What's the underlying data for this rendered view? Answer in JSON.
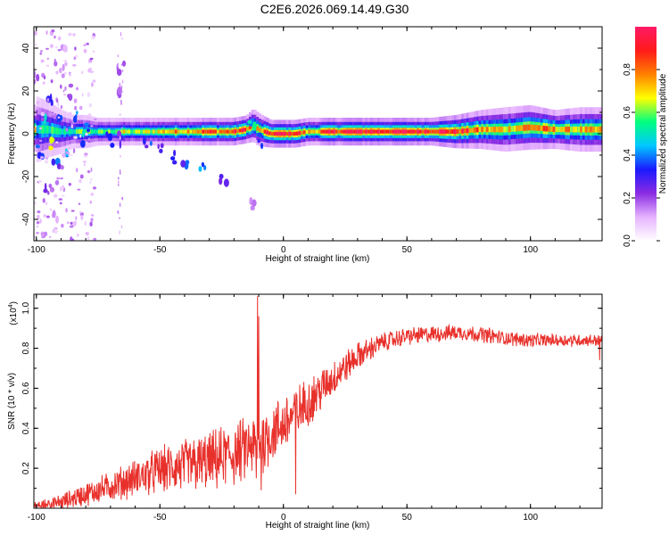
{
  "title": "C2E6.2026.069.14.49.G30",
  "chart_data": [
    {
      "type": "heatmap",
      "xlabel": "Height of straight line (km)",
      "ylabel": "Frequency (Hz)",
      "xlim": [
        -101,
        129
      ],
      "ylim": [
        -50,
        50
      ],
      "xticks": [
        -100,
        -50,
        0,
        50,
        100
      ],
      "yticks": [
        -40,
        -20,
        0,
        20,
        40
      ],
      "colorbar": {
        "label": "Normalized spectral amplitude",
        "range": [
          0,
          1
        ],
        "ticks": [
          0.0,
          0.2,
          0.4,
          0.6,
          0.8
        ],
        "colors": [
          "#ffffff",
          "#e6b3ff",
          "#8a2be2",
          "#1a1aff",
          "#00c8ff",
          "#00ff7f",
          "#ffff00",
          "#ff8000",
          "#ff1a1a",
          "#ff1a66"
        ]
      },
      "ridge": [
        {
          "x": -100,
          "y": 2,
          "w": 6,
          "a": 0.45
        },
        {
          "x": -95,
          "y": 2,
          "w": 5,
          "a": 0.55
        },
        {
          "x": -90,
          "y": 1,
          "w": 4,
          "a": 0.5
        },
        {
          "x": -85,
          "y": 1,
          "w": 3,
          "a": 0.55
        },
        {
          "x": -80,
          "y": 1,
          "w": 3,
          "a": 0.6
        },
        {
          "x": -75,
          "y": 1,
          "w": 2.5,
          "a": 0.55
        },
        {
          "x": -70,
          "y": 1,
          "w": 2.5,
          "a": 0.6
        },
        {
          "x": -65,
          "y": 1,
          "w": 2.5,
          "a": 0.65
        },
        {
          "x": -60,
          "y": 1,
          "w": 2.5,
          "a": 0.6
        },
        {
          "x": -55,
          "y": 1,
          "w": 2.5,
          "a": 0.65
        },
        {
          "x": -50,
          "y": 1,
          "w": 2.5,
          "a": 0.7
        },
        {
          "x": -45,
          "y": 1,
          "w": 2.5,
          "a": 0.75
        },
        {
          "x": -40,
          "y": 1,
          "w": 2.5,
          "a": 0.75
        },
        {
          "x": -35,
          "y": 1,
          "w": 2.5,
          "a": 0.8
        },
        {
          "x": -30,
          "y": 1,
          "w": 2.5,
          "a": 0.85
        },
        {
          "x": -25,
          "y": 1,
          "w": 2.5,
          "a": 0.8
        },
        {
          "x": -20,
          "y": 1,
          "w": 2.5,
          "a": 0.85
        },
        {
          "x": -15,
          "y": 2,
          "w": 2.5,
          "a": 0.9
        },
        {
          "x": -12,
          "y": 4,
          "w": 3,
          "a": 0.75
        },
        {
          "x": -10,
          "y": 2,
          "w": 3,
          "a": 0.7
        },
        {
          "x": -5,
          "y": 0,
          "w": 2.5,
          "a": 0.9
        },
        {
          "x": 0,
          "y": 0,
          "w": 2.5,
          "a": 0.95
        },
        {
          "x": 5,
          "y": 0,
          "w": 2.5,
          "a": 0.95
        },
        {
          "x": 10,
          "y": 1,
          "w": 2.5,
          "a": 0.7
        },
        {
          "x": 20,
          "y": 1,
          "w": 2.5,
          "a": 0.9
        },
        {
          "x": 30,
          "y": 1,
          "w": 2.5,
          "a": 0.95
        },
        {
          "x": 40,
          "y": 1,
          "w": 2.5,
          "a": 0.95
        },
        {
          "x": 50,
          "y": 1,
          "w": 2.5,
          "a": 0.95
        },
        {
          "x": 60,
          "y": 1,
          "w": 2.5,
          "a": 0.95
        },
        {
          "x": 70,
          "y": 1,
          "w": 3,
          "a": 0.9
        },
        {
          "x": 80,
          "y": 2,
          "w": 3.5,
          "a": 0.75
        },
        {
          "x": 90,
          "y": 2,
          "w": 4,
          "a": 0.7
        },
        {
          "x": 100,
          "y": 3,
          "w": 4,
          "a": 0.8
        },
        {
          "x": 110,
          "y": 2,
          "w": 3.5,
          "a": 0.75
        },
        {
          "x": 120,
          "y": 2,
          "w": 4,
          "a": 0.7
        },
        {
          "x": 129,
          "y": 2,
          "w": 4,
          "a": 0.7
        }
      ],
      "scatter_blobs": [
        {
          "x": -97,
          "y": 5,
          "a": 0.6
        },
        {
          "x": -93,
          "y": -5,
          "a": 0.7
        },
        {
          "x": -90,
          "y": 10,
          "a": 0.5
        },
        {
          "x": -88,
          "y": -10,
          "a": 0.6
        },
        {
          "x": -95,
          "y": 15,
          "a": 0.4
        },
        {
          "x": -85,
          "y": 8,
          "a": 0.5
        },
        {
          "x": -92,
          "y": -15,
          "a": 0.4
        },
        {
          "x": -82,
          "y": -4,
          "a": 0.5
        },
        {
          "x": -98,
          "y": -8,
          "a": 0.5
        },
        {
          "x": -86,
          "y": 20,
          "a": 0.3
        },
        {
          "x": -90,
          "y": 30,
          "a": 0.2
        },
        {
          "x": -95,
          "y": -25,
          "a": 0.25
        },
        {
          "x": -88,
          "y": 40,
          "a": 0.15
        },
        {
          "x": -93,
          "y": -40,
          "a": 0.15
        },
        {
          "x": -80,
          "y": 3,
          "a": 0.55
        },
        {
          "x": -100,
          "y": 25,
          "a": 0.2
        },
        {
          "x": -70,
          "y": -3,
          "a": 0.4
        },
        {
          "x": -65,
          "y": -2,
          "a": 0.35
        },
        {
          "x": -55,
          "y": -5,
          "a": 0.4
        },
        {
          "x": -50,
          "y": -8,
          "a": 0.35
        },
        {
          "x": -45,
          "y": -11,
          "a": 0.35
        },
        {
          "x": -40,
          "y": -12,
          "a": 0.4
        },
        {
          "x": -33,
          "y": -15,
          "a": 0.45
        },
        {
          "x": -24,
          "y": -21,
          "a": 0.3
        },
        {
          "x": -66,
          "y": 30,
          "a": 0.2
        },
        {
          "x": -67,
          "y": 20,
          "a": 0.25
        },
        {
          "x": -13,
          "y": 5,
          "a": 0.6
        },
        {
          "x": -10,
          "y": -3,
          "a": 0.4
        },
        {
          "x": -12,
          "y": -34,
          "a": 0.2
        }
      ]
    },
    {
      "type": "line",
      "xlabel": "Height of straight line (km)",
      "ylabel": "SNR (10 * v/v)",
      "y_multiplier": "(x10",
      "y_multiplier_exp": "4",
      "xlim": [
        -101,
        129
      ],
      "ylim": [
        0,
        1.07
      ],
      "xticks": [
        -100,
        -50,
        0,
        50,
        100
      ],
      "yticks": [
        0.2,
        0.4,
        0.6,
        0.8,
        1.0
      ],
      "color": "#e8302b",
      "trend": [
        {
          "x": -101,
          "y": 0.01
        },
        {
          "x": -90,
          "y": 0.03
        },
        {
          "x": -80,
          "y": 0.07
        },
        {
          "x": -70,
          "y": 0.11
        },
        {
          "x": -60,
          "y": 0.15
        },
        {
          "x": -50,
          "y": 0.19
        },
        {
          "x": -40,
          "y": 0.21
        },
        {
          "x": -30,
          "y": 0.23
        },
        {
          "x": -20,
          "y": 0.27
        },
        {
          "x": -10,
          "y": 0.32
        },
        {
          "x": 0,
          "y": 0.42
        },
        {
          "x": 10,
          "y": 0.53
        },
        {
          "x": 20,
          "y": 0.65
        },
        {
          "x": 30,
          "y": 0.76
        },
        {
          "x": 40,
          "y": 0.83
        },
        {
          "x": 50,
          "y": 0.86
        },
        {
          "x": 60,
          "y": 0.87
        },
        {
          "x": 70,
          "y": 0.88
        },
        {
          "x": 80,
          "y": 0.87
        },
        {
          "x": 90,
          "y": 0.85
        },
        {
          "x": 100,
          "y": 0.84
        },
        {
          "x": 110,
          "y": 0.84
        },
        {
          "x": 120,
          "y": 0.84
        },
        {
          "x": 129,
          "y": 0.84
        }
      ],
      "noise_amplitude": [
        {
          "x": -101,
          "a": 0.02
        },
        {
          "x": -80,
          "a": 0.05
        },
        {
          "x": -60,
          "a": 0.08
        },
        {
          "x": -40,
          "a": 0.12
        },
        {
          "x": -20,
          "a": 0.14
        },
        {
          "x": 0,
          "a": 0.13
        },
        {
          "x": 20,
          "a": 0.08
        },
        {
          "x": 40,
          "a": 0.04
        },
        {
          "x": 129,
          "a": 0.025
        }
      ],
      "spikes": [
        {
          "x": -10.5,
          "y": 1.06
        },
        {
          "x": -10,
          "y": 0.96
        },
        {
          "x": -11,
          "y": 0.15
        },
        {
          "x": -9,
          "y": 0.09
        },
        {
          "x": 5,
          "y": 0.07
        },
        {
          "x": 128,
          "y": 0.74
        }
      ]
    }
  ]
}
